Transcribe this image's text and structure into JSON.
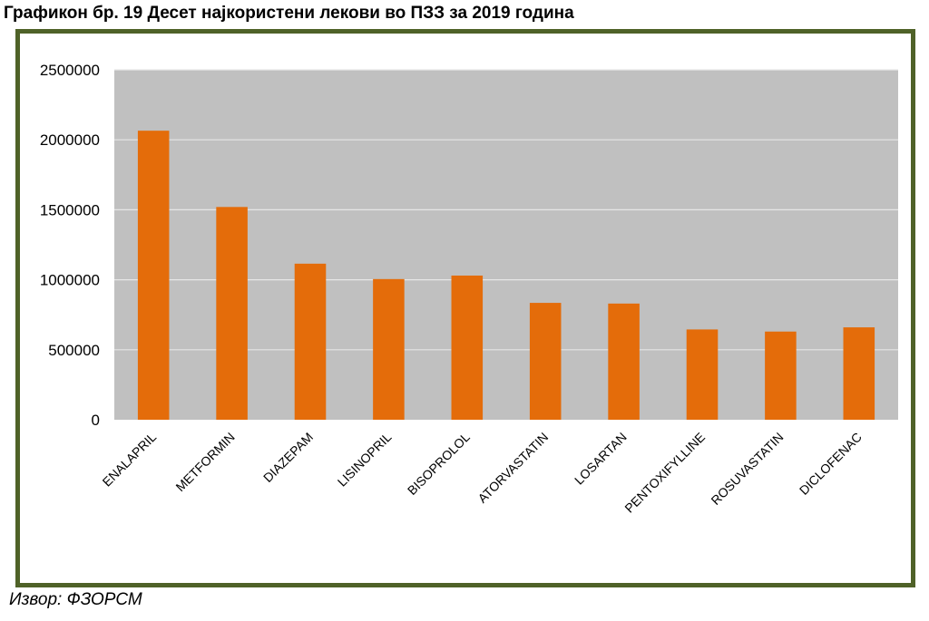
{
  "header": {
    "title": "Графикон бр.  19 Десет најкористени лекови во ПЗЗ за 2019 година"
  },
  "footer": {
    "source": "Извор: ФЗОРСМ"
  },
  "colors": {
    "bar": "#e46c0a",
    "plot_background": "#c0c0c0",
    "gridline": "#e6e6e6",
    "frame_border": "#4f6228"
  },
  "chart_data": {
    "type": "bar",
    "title": "",
    "xlabel": "",
    "ylabel": "",
    "categories": [
      "ENALAPRIL",
      "METFORMIN",
      "DIAZEPAM",
      "LISINOPRIL",
      "BISOPROLOL",
      "ATORVASTATIN",
      "LOSARTAN",
      "PENTOXIFYLLINE",
      "ROSUVASTATIN",
      "DICLOFENAC"
    ],
    "values": [
      2065000,
      1520000,
      1115000,
      1005000,
      1030000,
      835000,
      830000,
      645000,
      630000,
      660000
    ],
    "ylim": [
      0,
      2500000
    ],
    "yticks": [
      "0",
      "500000",
      "1000000",
      "1500000",
      "2000000",
      "2500000"
    ],
    "grid": true,
    "legend": "none"
  }
}
